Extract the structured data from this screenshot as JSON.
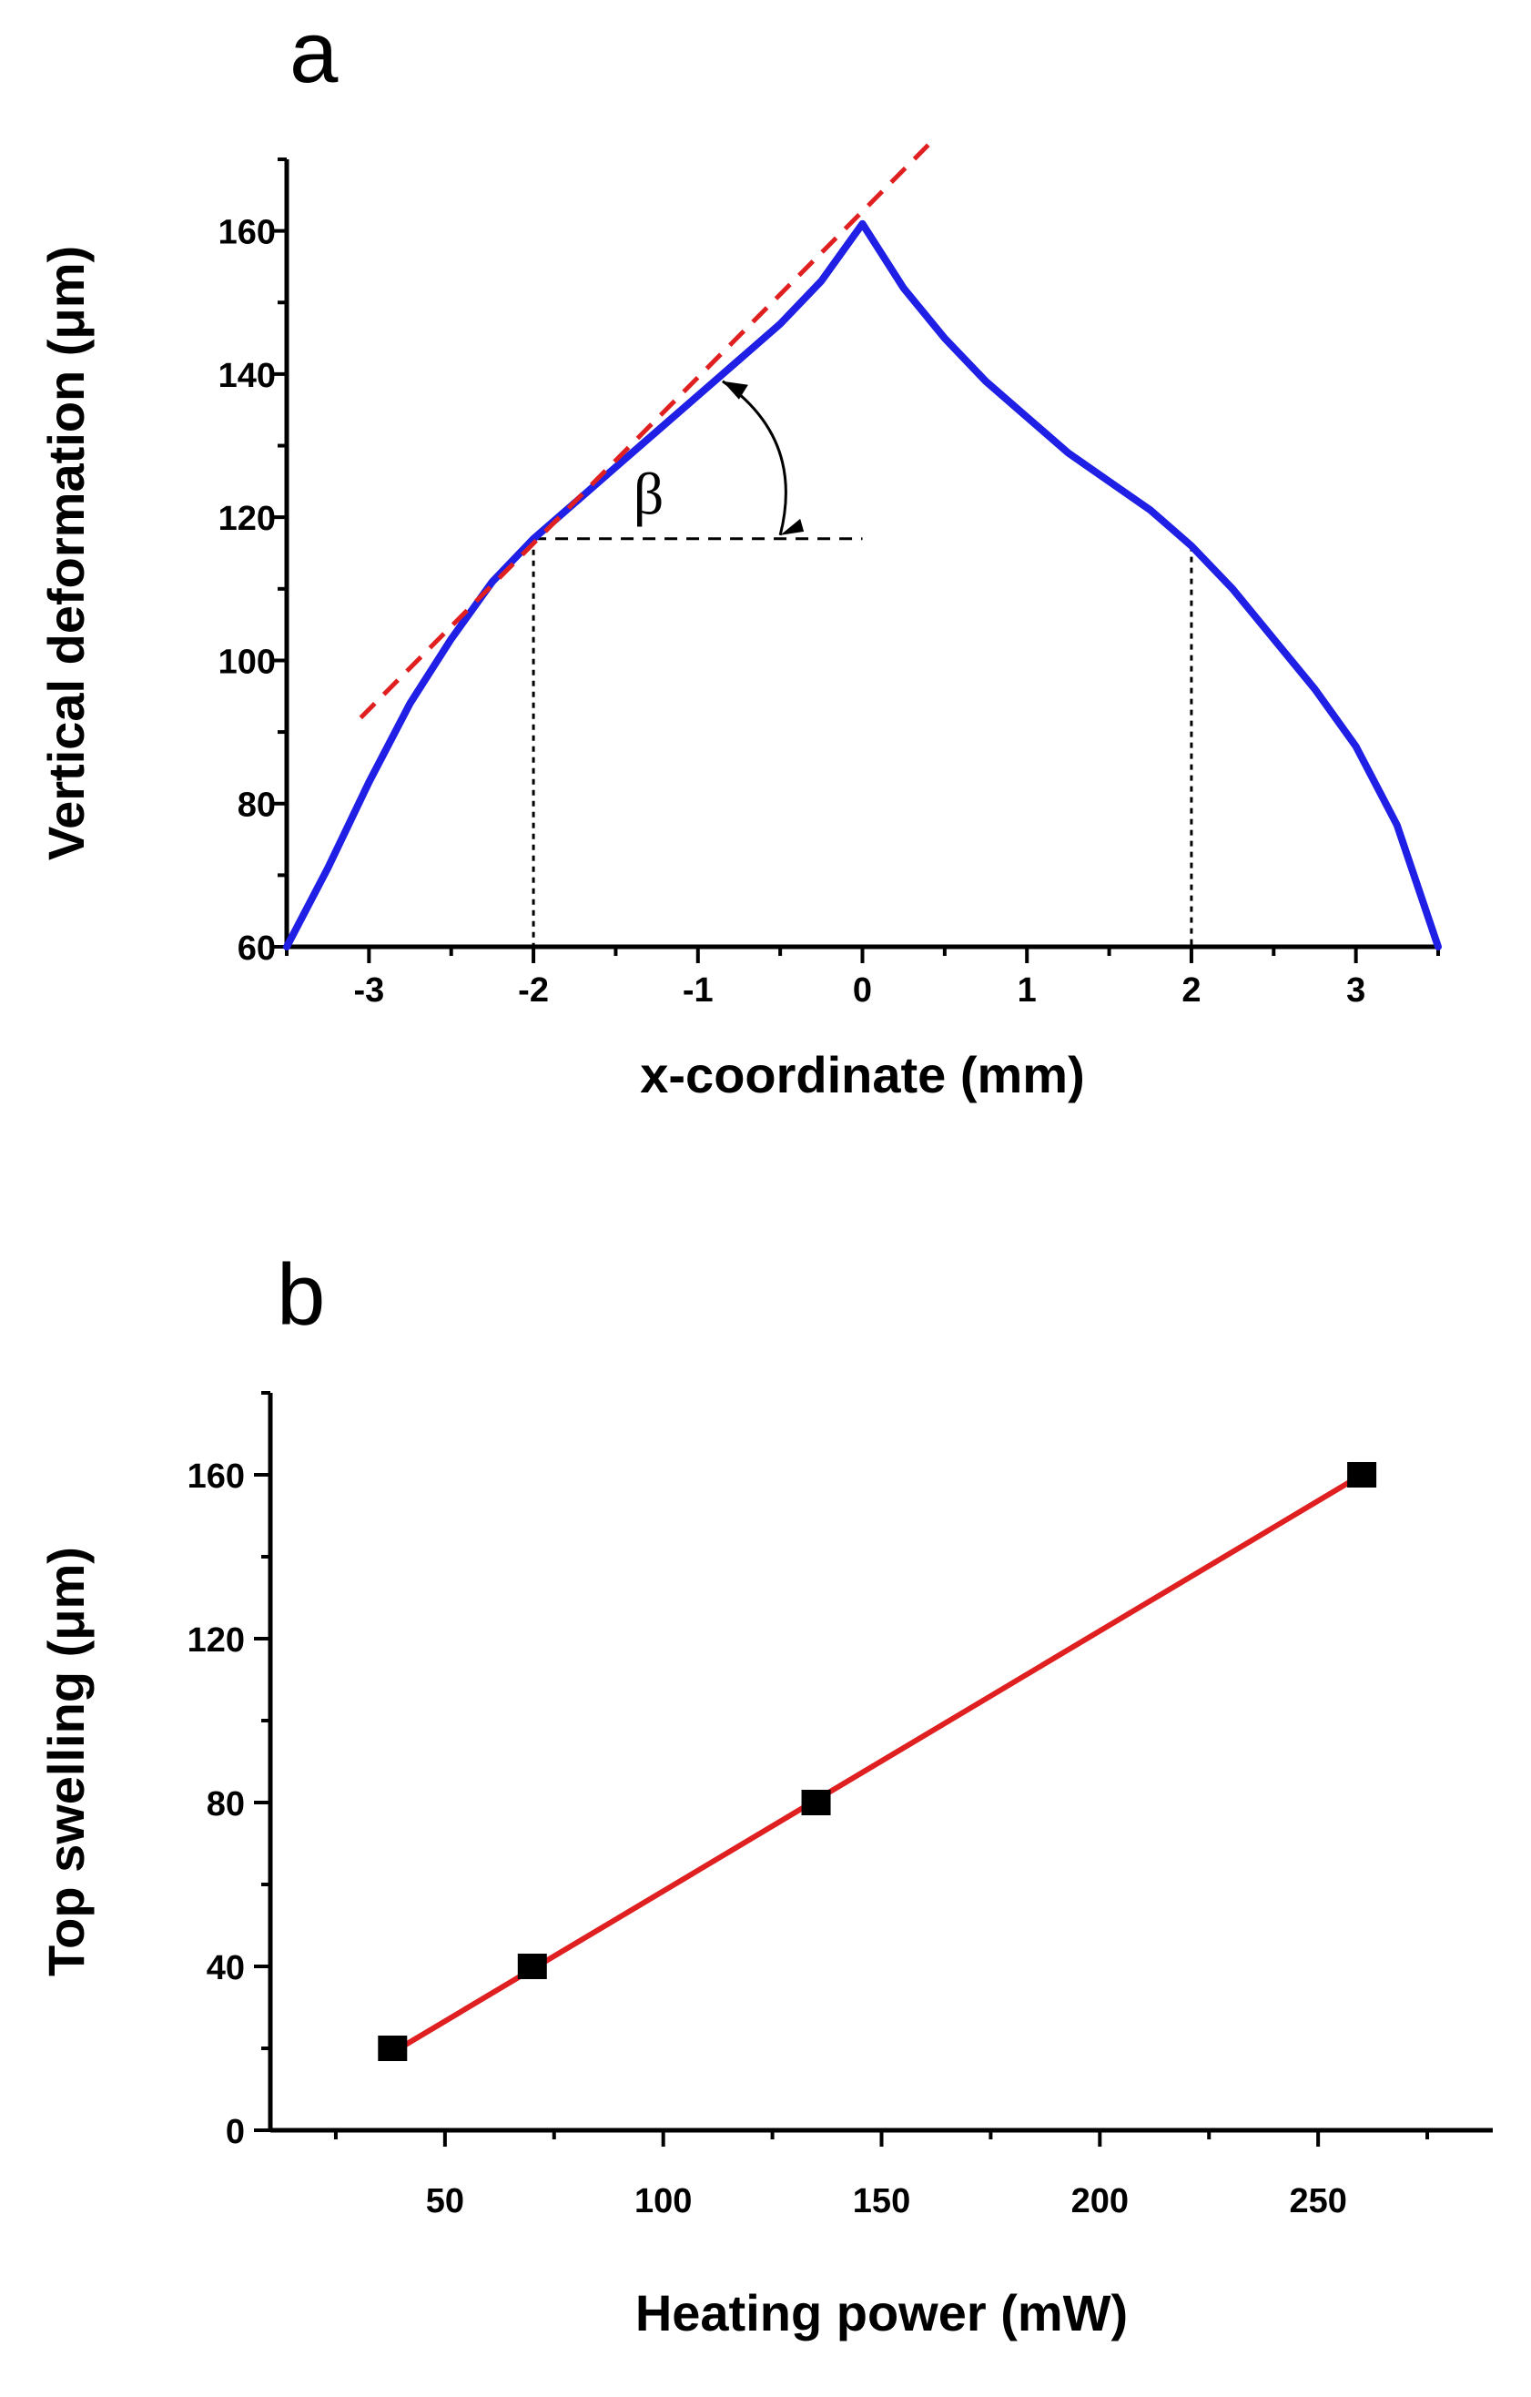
{
  "chart_data": [
    {
      "panel": "a",
      "type": "line",
      "xlabel": "x-coordinate (mm)",
      "ylabel": "Vertical deformation (μm)",
      "xlim": [
        -3.5,
        3.5
      ],
      "ylim": [
        60,
        170
      ],
      "xticks": [
        -3,
        -2,
        -1,
        0,
        1,
        2,
        3
      ],
      "yticks": [
        60,
        80,
        100,
        120,
        140,
        160
      ],
      "series": [
        {
          "color": "#1f1fe6",
          "x": [
            -3.5,
            -3.25,
            -3.0,
            -2.75,
            -2.5,
            -2.25,
            -2.0,
            -1.75,
            -1.5,
            -1.25,
            -1.0,
            -0.75,
            -0.5,
            -0.25,
            0.0,
            0.25,
            0.5,
            0.75,
            1.0,
            1.25,
            1.5,
            1.75,
            2.0,
            2.25,
            2.5,
            2.75,
            3.0,
            3.25,
            3.5
          ],
          "y": [
            60,
            71,
            83,
            94,
            103,
            111,
            117,
            122,
            127,
            132,
            137,
            142,
            147,
            153,
            161,
            152,
            145,
            139,
            134,
            129,
            125,
            121,
            116,
            110,
            103,
            96,
            88,
            77,
            60
          ]
        }
      ],
      "annotations": {
        "angle_symbol": "β",
        "tangent_line": {
          "color": "#e02020",
          "style": "dashed",
          "x": [
            -3.05,
            0.4
          ],
          "y": [
            92,
            172
          ]
        },
        "horizontal_ref": {
          "x": [
            -2.0,
            0.0
          ],
          "y": 117
        },
        "vertical_markers": [
          {
            "x": -2.0,
            "y": 117
          },
          {
            "x": 2.0,
            "y": 116
          }
        ]
      }
    },
    {
      "panel": "b",
      "type": "scatter",
      "xlabel": "Heating power (mW)",
      "ylabel": "Top swelling (μm)",
      "xlim": [
        10,
        290
      ],
      "ylim": [
        0,
        180
      ],
      "xticks": [
        50,
        100,
        150,
        200,
        250
      ],
      "yticks": [
        0,
        40,
        80,
        120,
        160
      ],
      "series": [
        {
          "marker": "square",
          "color": "#000000",
          "x": [
            38,
            70,
            135,
            260
          ],
          "y": [
            20,
            40,
            80,
            160
          ]
        }
      ],
      "fit_line": {
        "color": "#e02020",
        "x": [
          38,
          260
        ],
        "y": [
          19,
          160
        ]
      }
    }
  ]
}
